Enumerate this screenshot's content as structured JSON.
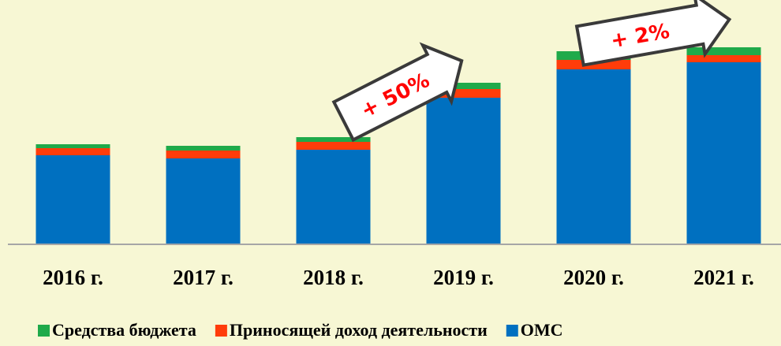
{
  "chart_data": {
    "type": "stacked_bar",
    "categories": [
      "2016 г.",
      "2017 г.",
      "2018 г.",
      "2019 г.",
      "2020 г.",
      "2021 г."
    ],
    "series": [
      {
        "name": "Средства бюджета",
        "color": "#1faa4a",
        "values": [
          5,
          6,
          6,
          8,
          11,
          10
        ]
      },
      {
        "name": "Приносящей доход деятельности",
        "color": "#ff3c0a",
        "values": [
          9,
          10,
          10,
          11,
          12,
          9
        ]
      },
      {
        "name": "ОМС",
        "color": "#0070c0",
        "values": [
          113,
          109,
          120,
          186,
          222,
          231
        ]
      }
    ],
    "ylim": [
      0,
      310
    ],
    "annotations": [
      "+ 50%",
      "+ 2%"
    ],
    "legend": "bottom"
  }
}
